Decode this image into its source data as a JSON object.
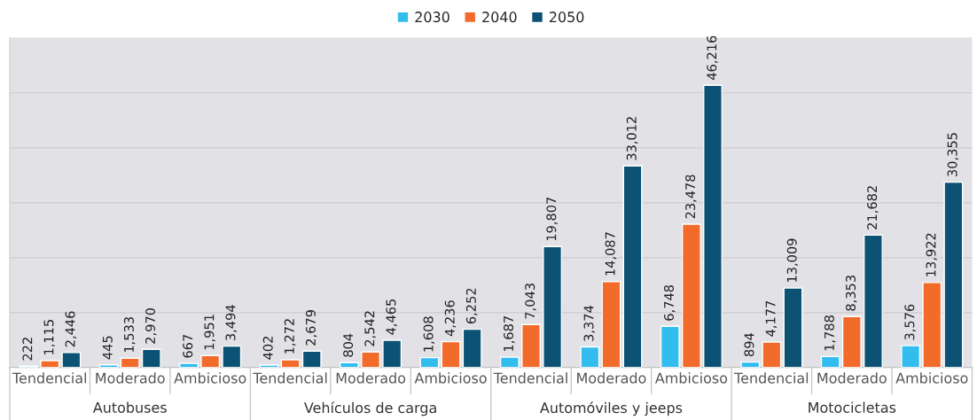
{
  "chart_data": {
    "type": "bar",
    "categories": [
      "Tendencial",
      "Moderado",
      "Ambicioso",
      "Tendencial",
      "Moderado",
      "Ambicioso",
      "Tendencial",
      "Moderado",
      "Ambicioso",
      "Tendencial",
      "Moderado",
      "Ambicioso"
    ],
    "annotations": [
      "Autobuses",
      "Vehículos de carga",
      "Automóviles y jeeps",
      "Motocicletas"
    ],
    "series": [
      {
        "name": "2030",
        "color": "#33bdef",
        "values": [
          222,
          445,
          667,
          402,
          804,
          1608,
          1687,
          3374,
          6748,
          894,
          1788,
          3576
        ],
        "value_labels": [
          "222",
          "445",
          "667",
          "402",
          "804",
          "1,608",
          "1,687",
          "3,374",
          "6,748",
          "894",
          "1,788",
          "3,576"
        ]
      },
      {
        "name": "2040",
        "color": "#f26b2a",
        "values": [
          1115,
          1533,
          1951,
          1272,
          2542,
          4236,
          7043,
          14087,
          23478,
          4177,
          8353,
          13922
        ],
        "value_labels": [
          "1,115",
          "1,533",
          "1,951",
          "1,272",
          "2,542",
          "4,236",
          "7,043",
          "14,087",
          "23,478",
          "4,177",
          "8,353",
          "13,922"
        ]
      },
      {
        "name": "2050",
        "color": "#0b5275",
        "values": [
          2446,
          2970,
          3494,
          2679,
          4465,
          6252,
          19807,
          33012,
          46216,
          13009,
          21682,
          30355
        ],
        "value_labels": [
          "2,446",
          "2,970",
          "3,494",
          "2,679",
          "4,465",
          "6,252",
          "19,807",
          "33,012",
          "46,216",
          "13,009",
          "21,682",
          "30,355"
        ]
      }
    ],
    "ylim": [
      0,
      54000
    ],
    "yticks": [
      {
        "value": 0,
        "label": null
      },
      {
        "value": 9000,
        "label": null
      },
      {
        "value": 18000,
        "label": null
      },
      {
        "value": 27000,
        "label": null
      },
      {
        "value": 36000,
        "label": null
      },
      {
        "value": 45000,
        "label": null
      },
      {
        "value": 54000,
        "label": null
      }
    ],
    "grid": "y",
    "legend": "top"
  }
}
